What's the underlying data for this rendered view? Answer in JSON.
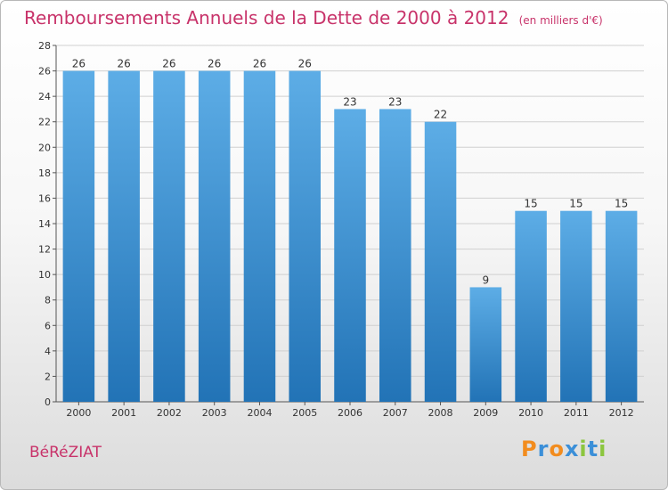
{
  "title": {
    "main": "Remboursements Annuels de la Dette de 2000 à 2012",
    "unit": "(en milliers d'€)"
  },
  "commune": "BéRéZIAT",
  "logo": {
    "letters": [
      "P",
      "r",
      "o",
      "x",
      "i",
      "t",
      "i"
    ],
    "colors": [
      "#f28c1e",
      "#3b8fd8",
      "#f28c1e",
      "#3b8fd8",
      "#8cc63f",
      "#3b8fd8",
      "#8cc63f"
    ]
  },
  "colors": {
    "bar_top": "#5dade6",
    "bar_bottom": "#2273b6",
    "title": "#c8336a",
    "grid": "#d0d0d0"
  },
  "chart_data": {
    "type": "bar",
    "categories": [
      "2000",
      "2001",
      "2002",
      "2003",
      "2004",
      "2005",
      "2006",
      "2007",
      "2008",
      "2009",
      "2010",
      "2011",
      "2012"
    ],
    "values": [
      26,
      26,
      26,
      26,
      26,
      26,
      23,
      23,
      22,
      9,
      15,
      15,
      15
    ],
    "ylim": [
      0,
      28
    ],
    "yticks": [
      0,
      2,
      4,
      6,
      8,
      10,
      12,
      14,
      16,
      18,
      20,
      22,
      24,
      26,
      28
    ],
    "grid": true,
    "data_labels": true
  }
}
